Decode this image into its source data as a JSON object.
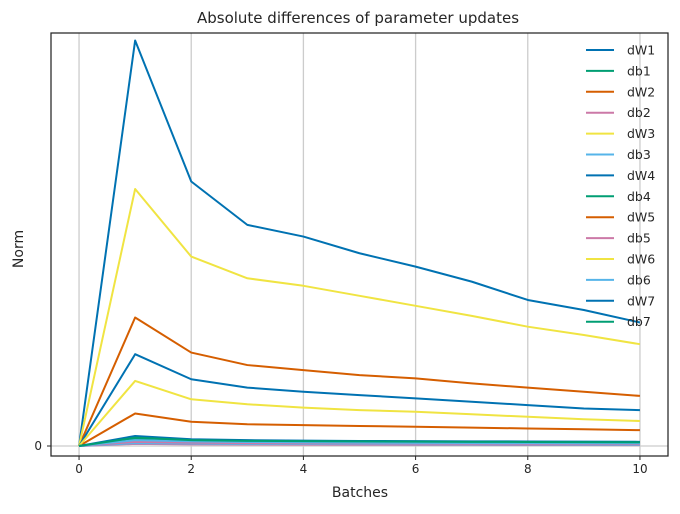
{
  "chart_data": {
    "type": "line",
    "title": "Absolute differences of parameter updates",
    "xlabel": "Batches",
    "ylabel": "Norm",
    "x": [
      0,
      1,
      2,
      3,
      4,
      5,
      6,
      7,
      8,
      9,
      10
    ],
    "xlim": [
      -0.5,
      10.5
    ],
    "ylim": [
      -0.12,
      4.95
    ],
    "xticks": [
      "0",
      "2",
      "4",
      "6",
      "8",
      "10"
    ],
    "yticks": [
      "0"
    ],
    "grid": "vertical",
    "legend_position": "top-right",
    "series": [
      {
        "name": "dW1",
        "color": "#0072b2",
        "values": [
          0,
          4.86,
          3.17,
          2.65,
          2.51,
          2.31,
          2.15,
          1.97,
          1.75,
          1.63,
          1.48
        ]
      },
      {
        "name": "db1",
        "color": "#009e73",
        "values": [
          0,
          0.045,
          0.035,
          0.03,
          0.028,
          0.026,
          0.024,
          0.022,
          0.021,
          0.02,
          0.019
        ]
      },
      {
        "name": "dW2",
        "color": "#d55e00",
        "values": [
          0,
          1.54,
          1.12,
          0.97,
          0.91,
          0.85,
          0.81,
          0.75,
          0.7,
          0.65,
          0.6
        ]
      },
      {
        "name": "db2",
        "color": "#cc79a7",
        "values": [
          0,
          0.025,
          0.02,
          0.018,
          0.016,
          0.015,
          0.014,
          0.013,
          0.012,
          0.012,
          0.011
        ]
      },
      {
        "name": "dW3",
        "color": "#f0e442",
        "values": [
          0,
          3.08,
          2.27,
          2.01,
          1.92,
          1.8,
          1.68,
          1.56,
          1.43,
          1.33,
          1.22
        ]
      },
      {
        "name": "db3",
        "color": "#56b4e9",
        "values": [
          0,
          0.035,
          0.03,
          0.026,
          0.024,
          0.022,
          0.021,
          0.02,
          0.019,
          0.018,
          0.017
        ]
      },
      {
        "name": "dW4",
        "color": "#0072b2",
        "values": [
          0,
          1.1,
          0.8,
          0.7,
          0.65,
          0.61,
          0.57,
          0.53,
          0.49,
          0.45,
          0.43
        ]
      },
      {
        "name": "db4",
        "color": "#009e73",
        "values": [
          0,
          0.09,
          0.07,
          0.06,
          0.055,
          0.05,
          0.048,
          0.046,
          0.044,
          0.042,
          0.04
        ]
      },
      {
        "name": "dW5",
        "color": "#d55e00",
        "values": [
          0,
          0.39,
          0.29,
          0.26,
          0.25,
          0.24,
          0.23,
          0.22,
          0.21,
          0.2,
          0.19
        ]
      },
      {
        "name": "db5",
        "color": "#cc79a7",
        "values": [
          0,
          0.05,
          0.04,
          0.035,
          0.032,
          0.03,
          0.028,
          0.027,
          0.026,
          0.025,
          0.024
        ]
      },
      {
        "name": "dW6",
        "color": "#f0e442",
        "values": [
          0,
          0.78,
          0.56,
          0.5,
          0.46,
          0.43,
          0.41,
          0.38,
          0.35,
          0.32,
          0.3
        ]
      },
      {
        "name": "db6",
        "color": "#56b4e9",
        "values": [
          0,
          0.07,
          0.055,
          0.048,
          0.044,
          0.04,
          0.038,
          0.036,
          0.034,
          0.033,
          0.032
        ]
      },
      {
        "name": "dW7",
        "color": "#0072b2",
        "values": [
          0,
          0.12,
          0.08,
          0.07,
          0.065,
          0.06,
          0.058,
          0.056,
          0.054,
          0.052,
          0.05
        ]
      },
      {
        "name": "db7",
        "color": "#009e73",
        "values": [
          0,
          0.1,
          0.07,
          0.062,
          0.058,
          0.055,
          0.052,
          0.05,
          0.048,
          0.046,
          0.045
        ]
      }
    ]
  }
}
